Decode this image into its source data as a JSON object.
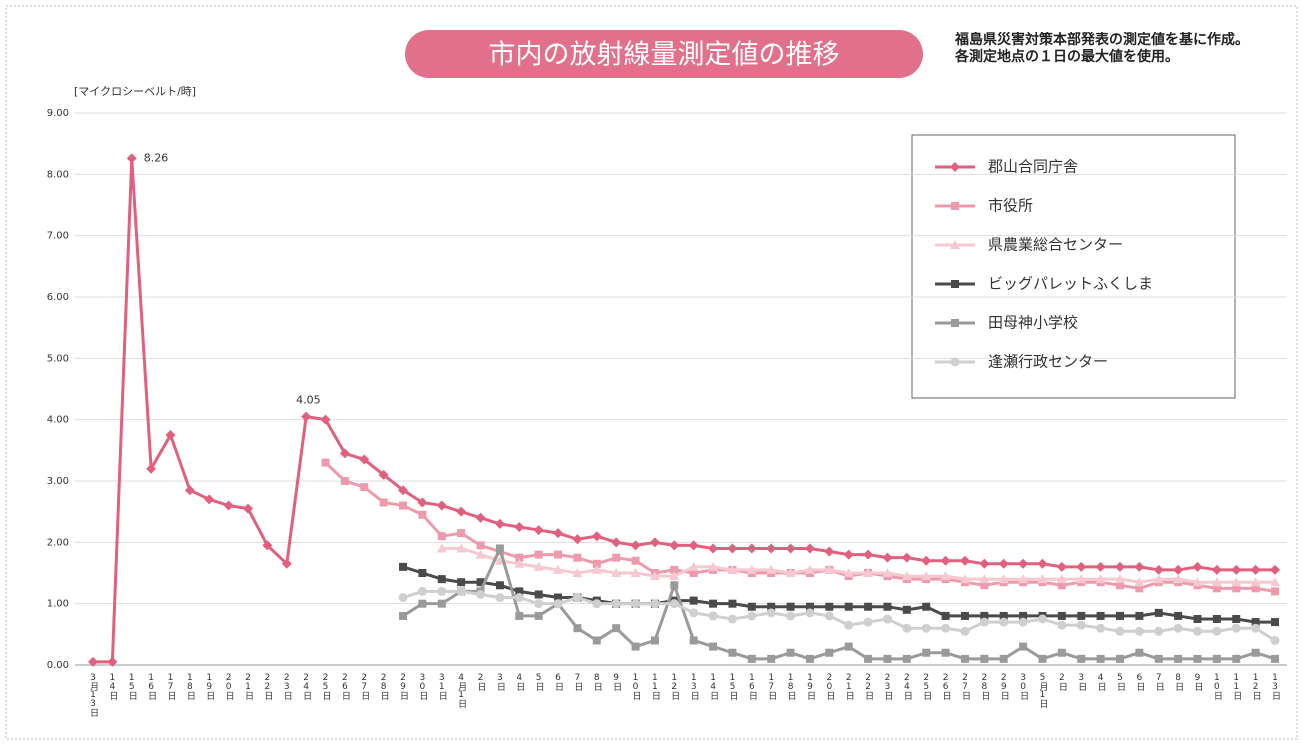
{
  "chart_data": {
    "type": "line",
    "title": "市内の放射線量測定値の推移",
    "subtitle": "福島県災害対策本部発表の測定値を基に作成。各測定地点の１日の最大値を使用。",
    "y_axis_label": "[マイクロシーベルト/時]",
    "categories": [
      "3月13日",
      "14日",
      "15日",
      "16日",
      "17日",
      "18日",
      "19日",
      "20日",
      "21日",
      "22日",
      "23日",
      "24日",
      "25日",
      "26日",
      "27日",
      "28日",
      "29日",
      "30日",
      "31日",
      "4月1日",
      "2日",
      "3日",
      "4日",
      "5日",
      "6日",
      "7日",
      "8日",
      "9日",
      "10日",
      "11日",
      "12日",
      "13日",
      "14日",
      "15日",
      "16日",
      "17日",
      "18日",
      "19日",
      "20日",
      "21日",
      "22日",
      "23日",
      "24日",
      "25日",
      "26日",
      "27日",
      "28日",
      "29日",
      "30日",
      "5月1日",
      "2日",
      "3日",
      "4日",
      "5日",
      "6日",
      "7日",
      "8日",
      "9日",
      "10日",
      "11日",
      "12日",
      "13日"
    ],
    "ylim": [
      0,
      9
    ],
    "yticks": [
      {
        "value": 0,
        "label": "0.00"
      },
      {
        "value": 1,
        "label": "1.00"
      },
      {
        "value": 2,
        "label": "2.00"
      },
      {
        "value": 3,
        "label": "3.00"
      },
      {
        "value": 4,
        "label": "4.00"
      },
      {
        "value": 5,
        "label": "5.00"
      },
      {
        "value": 6,
        "label": "6.00"
      },
      {
        "value": 7,
        "label": "7.00"
      },
      {
        "value": 8,
        "label": "8.00"
      },
      {
        "value": 9,
        "label": "9.00"
      }
    ],
    "grid": true,
    "legend": "upper right",
    "series": [
      {
        "name": "郡山合同庁舎",
        "color": "#e0607e",
        "marker": "diamond",
        "values": [
          0.05,
          0.05,
          8.26,
          3.2,
          3.75,
          2.85,
          2.7,
          2.6,
          2.55,
          1.95,
          1.65,
          4.05,
          4.0,
          3.45,
          3.35,
          3.1,
          2.85,
          2.65,
          2.6,
          2.5,
          2.4,
          2.3,
          2.25,
          2.2,
          2.15,
          2.05,
          2.1,
          2.0,
          1.95,
          2.0,
          1.95,
          1.95,
          1.9,
          1.9,
          1.9,
          1.9,
          1.9,
          1.9,
          1.85,
          1.8,
          1.8,
          1.75,
          1.75,
          1.7,
          1.7,
          1.7,
          1.65,
          1.65,
          1.65,
          1.65,
          1.6,
          1.6,
          1.6,
          1.6,
          1.6,
          1.55,
          1.55,
          1.6,
          1.55,
          1.55,
          1.55,
          1.55
        ],
        "value_labels": [
          null,
          null,
          "8.26",
          null,
          null,
          null,
          null,
          null,
          null,
          null,
          null,
          "4.05",
          null,
          null,
          null,
          null,
          null,
          null,
          null,
          null,
          null,
          null,
          null,
          null,
          null,
          null,
          null,
          null,
          null,
          null,
          null,
          null,
          null,
          null,
          null,
          null,
          null,
          null,
          null,
          null,
          null,
          null,
          null,
          null,
          null,
          null,
          null,
          null,
          null,
          null,
          null,
          null,
          null,
          null,
          null,
          null,
          null,
          null,
          null,
          null,
          null,
          null
        ]
      },
      {
        "name": "市役所",
        "color": "#ee9aad",
        "marker": "square",
        "values": [
          null,
          null,
          null,
          null,
          null,
          null,
          null,
          null,
          null,
          null,
          null,
          null,
          3.3,
          3.0,
          2.9,
          2.65,
          2.6,
          2.45,
          2.1,
          2.15,
          1.95,
          1.85,
          1.75,
          1.8,
          1.8,
          1.75,
          1.65,
          1.75,
          1.7,
          1.5,
          1.55,
          1.5,
          1.55,
          1.55,
          1.5,
          1.5,
          1.5,
          1.5,
          1.55,
          1.45,
          1.5,
          1.45,
          1.4,
          1.4,
          1.4,
          1.35,
          1.3,
          1.35,
          1.35,
          1.35,
          1.3,
          1.35,
          1.35,
          1.3,
          1.25,
          1.35,
          1.35,
          1.3,
          1.25,
          1.25,
          1.25,
          1.2
        ]
      },
      {
        "name": "県農業総合センター",
        "color": "#f5c8d2",
        "marker": "triangle",
        "values": [
          null,
          null,
          null,
          null,
          null,
          null,
          null,
          null,
          null,
          null,
          null,
          null,
          null,
          null,
          null,
          null,
          null,
          null,
          1.9,
          1.9,
          1.8,
          1.7,
          1.65,
          1.6,
          1.55,
          1.5,
          1.55,
          1.5,
          1.5,
          1.45,
          1.45,
          1.6,
          1.6,
          1.55,
          1.55,
          1.55,
          1.5,
          1.55,
          1.55,
          1.5,
          1.5,
          1.5,
          1.45,
          1.45,
          1.45,
          1.4,
          1.4,
          1.4,
          1.4,
          1.4,
          1.4,
          1.4,
          1.4,
          1.4,
          1.35,
          1.4,
          1.4,
          1.35,
          1.35,
          1.35,
          1.35,
          1.35
        ]
      },
      {
        "name": "ビッグパレットふくしま",
        "color": "#4a4a4a",
        "marker": "square",
        "values": [
          null,
          null,
          null,
          null,
          null,
          null,
          null,
          null,
          null,
          null,
          null,
          null,
          null,
          null,
          null,
          null,
          1.6,
          1.5,
          1.4,
          1.35,
          1.35,
          1.3,
          1.2,
          1.15,
          1.1,
          1.1,
          1.05,
          1.0,
          1.0,
          1.0,
          1.05,
          1.05,
          1.0,
          1.0,
          0.95,
          0.95,
          0.95,
          0.95,
          0.95,
          0.95,
          0.95,
          0.95,
          0.9,
          0.95,
          0.8,
          0.8,
          0.8,
          0.8,
          0.8,
          0.8,
          0.8,
          0.8,
          0.8,
          0.8,
          0.8,
          0.85,
          0.8,
          0.75,
          0.75,
          0.75,
          0.7,
          0.7
        ]
      },
      {
        "name": "田母神小学校",
        "color": "#9a9a9a",
        "marker": "square",
        "values": [
          null,
          null,
          null,
          null,
          null,
          null,
          null,
          null,
          null,
          null,
          null,
          null,
          null,
          null,
          null,
          null,
          0.8,
          1.0,
          1.0,
          1.2,
          1.2,
          1.9,
          0.8,
          0.8,
          1.0,
          0.6,
          0.4,
          0.6,
          0.3,
          0.4,
          1.3,
          0.4,
          0.3,
          0.2,
          0.1,
          0.1,
          0.2,
          0.1,
          0.2,
          0.3,
          0.1,
          0.1,
          0.1,
          0.2,
          0.2,
          0.1,
          0.1,
          0.1,
          0.3,
          0.1,
          0.2,
          0.1,
          0.1,
          0.1,
          0.2,
          0.1,
          0.1,
          0.1,
          0.1,
          0.1,
          0.2,
          0.1
        ]
      },
      {
        "name": "逢瀬行政センター",
        "color": "#cfcfcf",
        "marker": "circle",
        "values": [
          null,
          null,
          null,
          null,
          null,
          null,
          null,
          null,
          null,
          null,
          null,
          null,
          null,
          null,
          null,
          null,
          1.1,
          1.2,
          1.2,
          1.2,
          1.15,
          1.1,
          1.1,
          1.0,
          1.0,
          1.1,
          1.0,
          1.0,
          1.0,
          1.0,
          1.0,
          0.85,
          0.8,
          0.75,
          0.8,
          0.85,
          0.8,
          0.85,
          0.8,
          0.65,
          0.7,
          0.75,
          0.6,
          0.6,
          0.6,
          0.55,
          0.7,
          0.7,
          0.7,
          0.75,
          0.65,
          0.65,
          0.6,
          0.55,
          0.55,
          0.55,
          0.6,
          0.55,
          0.55,
          0.6,
          0.6,
          0.4
        ]
      }
    ]
  }
}
